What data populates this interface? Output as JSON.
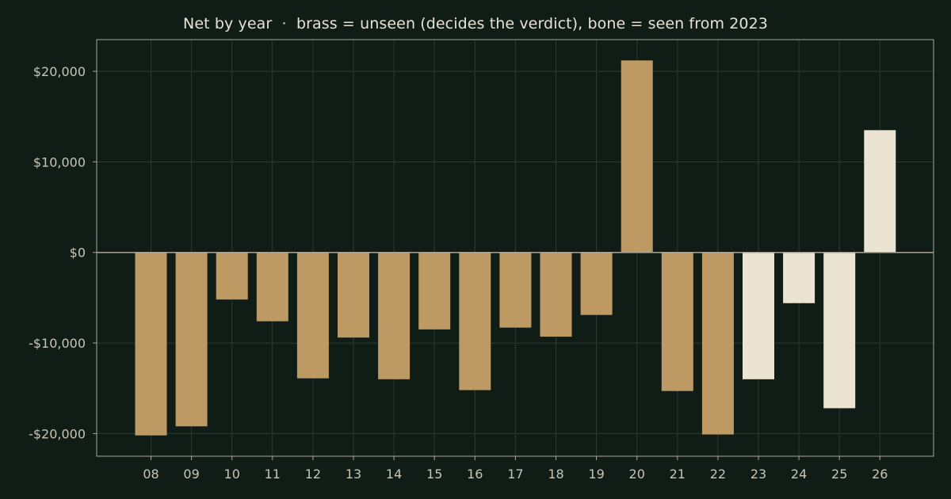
{
  "colors": {
    "background": "#101d17",
    "brass": "#bd9a63",
    "bone": "#ebe4d3",
    "axis": "#a9a698",
    "grid": "#2c3a31",
    "text": "#e7e2d3"
  },
  "chart_data": {
    "type": "bar",
    "title": "Net by year  ·  brass = unseen (decides the verdict), bone = seen from 2023",
    "xlabel": "",
    "ylabel": "",
    "ylim": [
      -22500,
      23500
    ],
    "grid": true,
    "yticks": [
      -20000,
      -10000,
      0,
      10000,
      20000
    ],
    "ytick_labels": [
      "-$20,000",
      "-$10,000",
      "$0",
      "$10,000",
      "$20,000"
    ],
    "categories": [
      "08",
      "09",
      "10",
      "11",
      "12",
      "13",
      "14",
      "15",
      "16",
      "17",
      "18",
      "19",
      "20",
      "21",
      "22",
      "23",
      "24",
      "25",
      "26"
    ],
    "values": [
      -20200,
      -19200,
      -5200,
      -7600,
      -13900,
      -9400,
      -14000,
      -8500,
      -15200,
      -8300,
      -9300,
      -6900,
      21200,
      -15300,
      -20100,
      -14000,
      -5600,
      -17200,
      13500
    ],
    "color_groups": [
      "brass",
      "brass",
      "brass",
      "brass",
      "brass",
      "brass",
      "brass",
      "brass",
      "brass",
      "brass",
      "brass",
      "brass",
      "brass",
      "brass",
      "brass",
      "bone",
      "bone",
      "bone",
      "bone"
    ]
  }
}
